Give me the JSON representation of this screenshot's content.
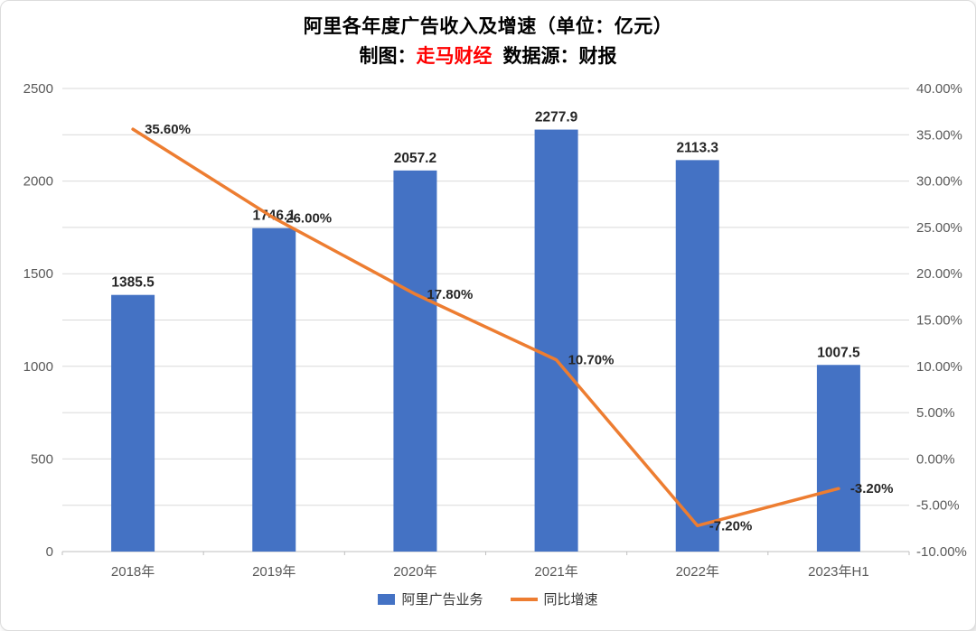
{
  "title": {
    "line1": "阿里各年度广告收入及增速（单位：亿元）",
    "line2_prefix": "制图：",
    "line2_brand": "走马财经",
    "line2_suffix": "数据源：财报"
  },
  "colors": {
    "bar": "#4472C4",
    "line": "#ED7D31",
    "brand_red": "#FF0000",
    "grid": "#D9D9D9",
    "axis_line": "#BFBFBF",
    "axis_text": "#595959",
    "label_text": "#262626"
  },
  "chart_data": {
    "type": "bar",
    "combo": "bar+line",
    "title": "阿里各年度广告收入及增速（单位：亿元）",
    "subtitle": "制图：走马财经 数据源：财报",
    "categories": [
      "2018年",
      "2019年",
      "2020年",
      "2021年",
      "2022年",
      "2023年H1"
    ],
    "series": [
      {
        "name": "阿里广告业务",
        "type": "bar",
        "axis": "left",
        "color": "#4472C4",
        "values": [
          1385.5,
          1746.1,
          2057.2,
          2277.9,
          2113.3,
          1007.5
        ],
        "labels": [
          "1385.5",
          "1746.1",
          "2057.2",
          "2277.9",
          "2113.3",
          "1007.5"
        ]
      },
      {
        "name": "同比增速",
        "type": "line",
        "axis": "right",
        "color": "#ED7D31",
        "values": [
          35.6,
          26.0,
          17.8,
          10.7,
          -7.2,
          -3.2
        ],
        "labels": [
          "35.60%",
          "26.00%",
          "17.80%",
          "10.70%",
          "-7.20%",
          "-3.20%"
        ]
      }
    ],
    "left_axis": {
      "min": 0,
      "max": 2500,
      "step": 500,
      "ticks": [
        "0",
        "500",
        "1000",
        "1500",
        "2000",
        "2500"
      ]
    },
    "right_axis": {
      "min": -10,
      "max": 40,
      "step": 5,
      "ticks": [
        "-10.00%",
        "-5.00%",
        "0.00%",
        "5.00%",
        "10.00%",
        "15.00%",
        "20.00%",
        "25.00%",
        "30.00%",
        "35.00%",
        "40.00%"
      ]
    },
    "grid": true,
    "legend_position": "bottom"
  },
  "legend": {
    "items": [
      {
        "label": "阿里广告业务",
        "swatch": "bar"
      },
      {
        "label": "同比增速",
        "swatch": "line"
      }
    ]
  }
}
